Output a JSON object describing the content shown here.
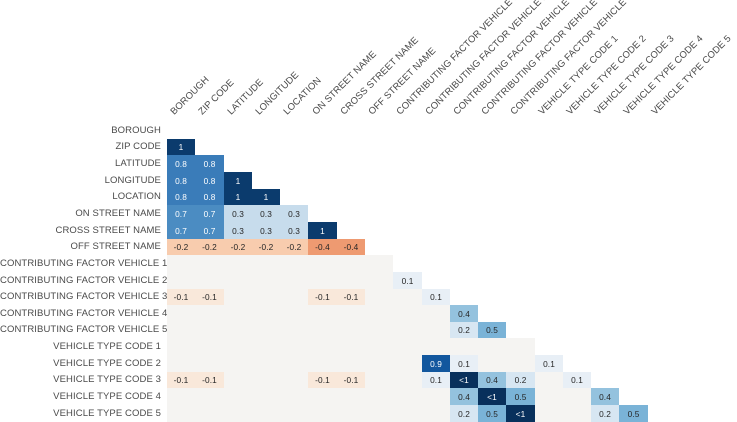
{
  "chart_data": {
    "type": "heatmap",
    "subtype": "correlation-matrix-lower-triangle",
    "title": "",
    "legend": "none",
    "grid": false,
    "x_label_rotation_deg": 45,
    "variables": [
      "BOROUGH",
      "ZIP CODE",
      "LATITUDE",
      "LONGITUDE",
      "LOCATION",
      "ON STREET NAME",
      "CROSS STREET NAME",
      "OFF STREET NAME",
      "CONTRIBUTING FACTOR VEHICLE 1",
      "CONTRIBUTING FACTOR VEHICLE 2",
      "CONTRIBUTING FACTOR VEHICLE 3",
      "CONTRIBUTING FACTOR VEHICLE 4",
      "CONTRIBUTING FACTOR VEHICLE 5",
      "VEHICLE TYPE CODE 1",
      "VEHICLE TYPE CODE 2",
      "VEHICLE TYPE CODE 3",
      "VEHICLE TYPE CODE 4",
      "VEHICLE TYPE CODE 5"
    ],
    "matrix": [
      [],
      [
        1
      ],
      [
        0.8,
        0.8
      ],
      [
        0.8,
        0.8,
        1
      ],
      [
        0.8,
        0.8,
        1,
        1
      ],
      [
        0.7,
        0.7,
        0.3,
        0.3,
        0.3
      ],
      [
        0.7,
        0.7,
        0.3,
        0.3,
        0.3,
        1
      ],
      [
        -0.2,
        -0.2,
        -0.2,
        -0.2,
        -0.2,
        -0.4,
        -0.4
      ],
      [
        null,
        null,
        null,
        null,
        null,
        null,
        null,
        null
      ],
      [
        null,
        null,
        null,
        null,
        null,
        null,
        null,
        null,
        0.1
      ],
      [
        -0.1,
        -0.1,
        null,
        null,
        null,
        -0.1,
        -0.1,
        null,
        null,
        0.1
      ],
      [
        null,
        null,
        null,
        null,
        null,
        null,
        null,
        null,
        null,
        null,
        0.4
      ],
      [
        null,
        null,
        null,
        null,
        null,
        null,
        null,
        null,
        null,
        null,
        0.2,
        0.5
      ],
      [
        null,
        null,
        null,
        null,
        null,
        null,
        null,
        null,
        null,
        null,
        null,
        null,
        null
      ],
      [
        null,
        null,
        null,
        null,
        null,
        null,
        null,
        null,
        null,
        0.9,
        0.1,
        null,
        null,
        0.1
      ],
      [
        -0.1,
        -0.1,
        null,
        null,
        null,
        -0.1,
        -0.1,
        null,
        null,
        0.1,
        "<1",
        0.4,
        0.2,
        null,
        0.1
      ],
      [
        null,
        null,
        null,
        null,
        null,
        null,
        null,
        null,
        null,
        null,
        0.4,
        "<1",
        0.5,
        null,
        null,
        0.4
      ],
      [
        null,
        null,
        null,
        null,
        null,
        null,
        null,
        null,
        null,
        null,
        0.2,
        0.5,
        "<1",
        null,
        null,
        0.2,
        0.5
      ]
    ],
    "colors": {
      "background": "#ffffff",
      "label_text": "#4a4a4a",
      "cell_text_dark": "#262626",
      "cell_text_light": "#ffffff",
      "blank_cell": "#f5f4f2",
      "values": {
        "1": "#0b3b6d",
        "<1": "#08305c",
        "0.9": "#12579e",
        "0.8": "#3a7cb9",
        "0.7": "#4b8cc2",
        "0.5": "#7ab3d7",
        "0.4": "#94c2de",
        "0.3": "#c7dcec",
        "0.2": "#d7e6f2",
        "0.1": "#e8eff6",
        "-0.1": "#f9e8da",
        "-0.2": "#f8ccae",
        "-0.4": "#ee9a71"
      },
      "light_text_values": [
        "1",
        "<1",
        "0.9",
        "0.8",
        "0.7"
      ]
    }
  }
}
